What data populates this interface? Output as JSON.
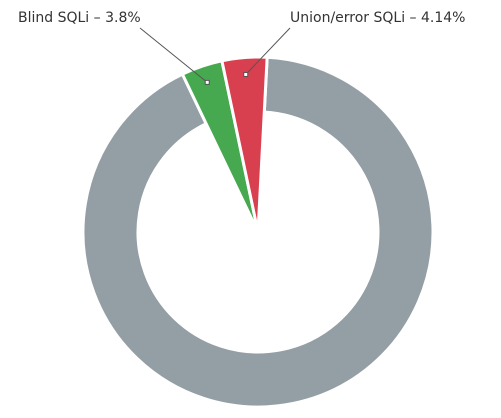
{
  "chart_data": {
    "type": "pie",
    "values": [
      92.06,
      3.8,
      4.14
    ],
    "value_labels": [
      null,
      "Blind SQLi – 3.8%",
      "Union/error SQLi – 4.14%"
    ],
    "colors": [
      "#949fa5",
      "#46a84f",
      "#d9404f"
    ]
  }
}
